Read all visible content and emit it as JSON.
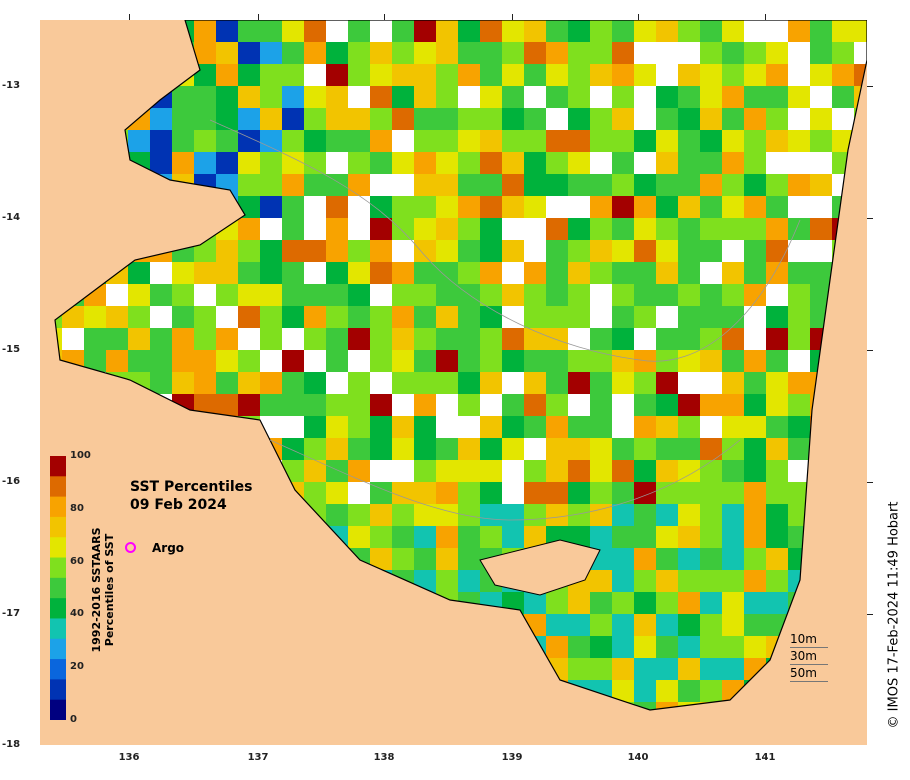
{
  "title": "SST Percentiles",
  "date": "09 Feb 2024",
  "legend": {
    "argo_label": "Argo",
    "argo_marker_color": "#ff00ff"
  },
  "colorbar": {
    "title_line1": "1992-2016 SSTAARS",
    "title_line2": "Percentiles of SST",
    "ticks": [
      "0",
      "20",
      "40",
      "60",
      "80",
      "100"
    ],
    "colors": [
      "#000080",
      "#0033b3",
      "#0a66dd",
      "#1ca2e8",
      "#12c4b0",
      "#00b23c",
      "#3dc93c",
      "#7fe01e",
      "#e3e600",
      "#f2c400",
      "#f8a300",
      "#dd6a00",
      "#a30000"
    ]
  },
  "depth_contours": [
    "10m",
    "30m",
    "50m"
  ],
  "credit": "© IMOS 17-Feb-2024 11:49 Hobart",
  "axes": {
    "x_ticks": [
      "136",
      "137",
      "138",
      "139",
      "140",
      "141"
    ],
    "y_ticks": [
      "-13",
      "-14",
      "-15",
      "-16",
      "-17",
      "-18"
    ]
  },
  "map_colors": {
    "land": "#f9c99a",
    "nodata": "#ffffff"
  }
}
